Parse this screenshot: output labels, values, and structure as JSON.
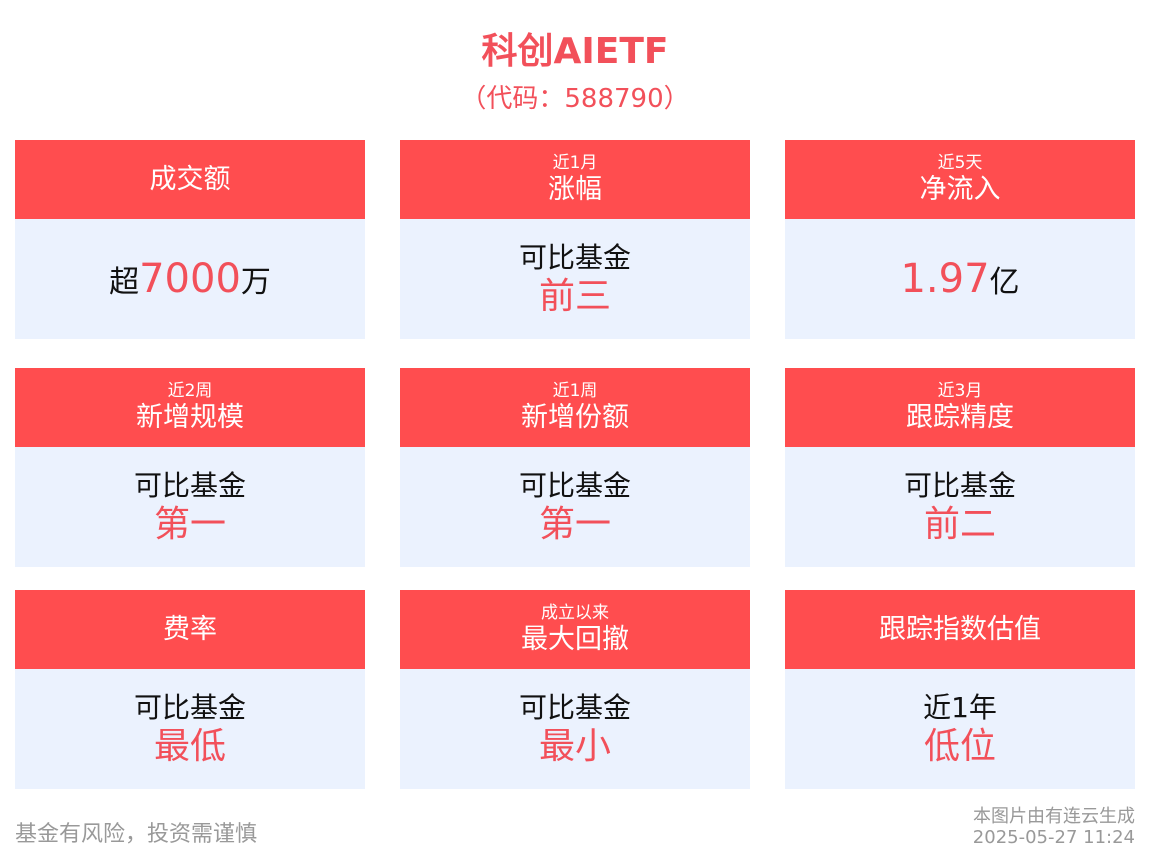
{
  "title": "科创AIETF",
  "code": "（代码：588790）",
  "cards": [
    {
      "sub": "",
      "head": "成交额",
      "prefix": "超",
      "value": "7000",
      "suffix": "万"
    },
    {
      "sub": "近1月",
      "head": "涨幅",
      "line1": "可比基金",
      "line2": "前三"
    },
    {
      "sub": "近5天",
      "head": "净流入",
      "prefix": "",
      "value": "1.97",
      "suffix": "亿"
    },
    {
      "sub": "近2周",
      "head": "新增规模",
      "line1": "可比基金",
      "line2": "第一"
    },
    {
      "sub": "近1周",
      "head": "新增份额",
      "line1": "可比基金",
      "line2": "第一"
    },
    {
      "sub": "近3月",
      "head": "跟踪精度",
      "line1": "可比基金",
      "line2": "前二"
    },
    {
      "sub": "",
      "head": "费率",
      "line1": "可比基金",
      "line2": "最低"
    },
    {
      "sub": "成立以来",
      "head": "最大回撤",
      "line1": "可比基金",
      "line2": "最小"
    },
    {
      "sub": "",
      "head": "跟踪指数估值",
      "line1": "近1年",
      "line2": "低位"
    }
  ],
  "footer": {
    "risk": "基金有风险，投资需谨慎",
    "source": "本图片由有连云生成",
    "timestamp": "2025-05-27 11:24"
  },
  "colors": {
    "accent": "#ff4d4f",
    "card_bg": "#ebf2fe"
  }
}
